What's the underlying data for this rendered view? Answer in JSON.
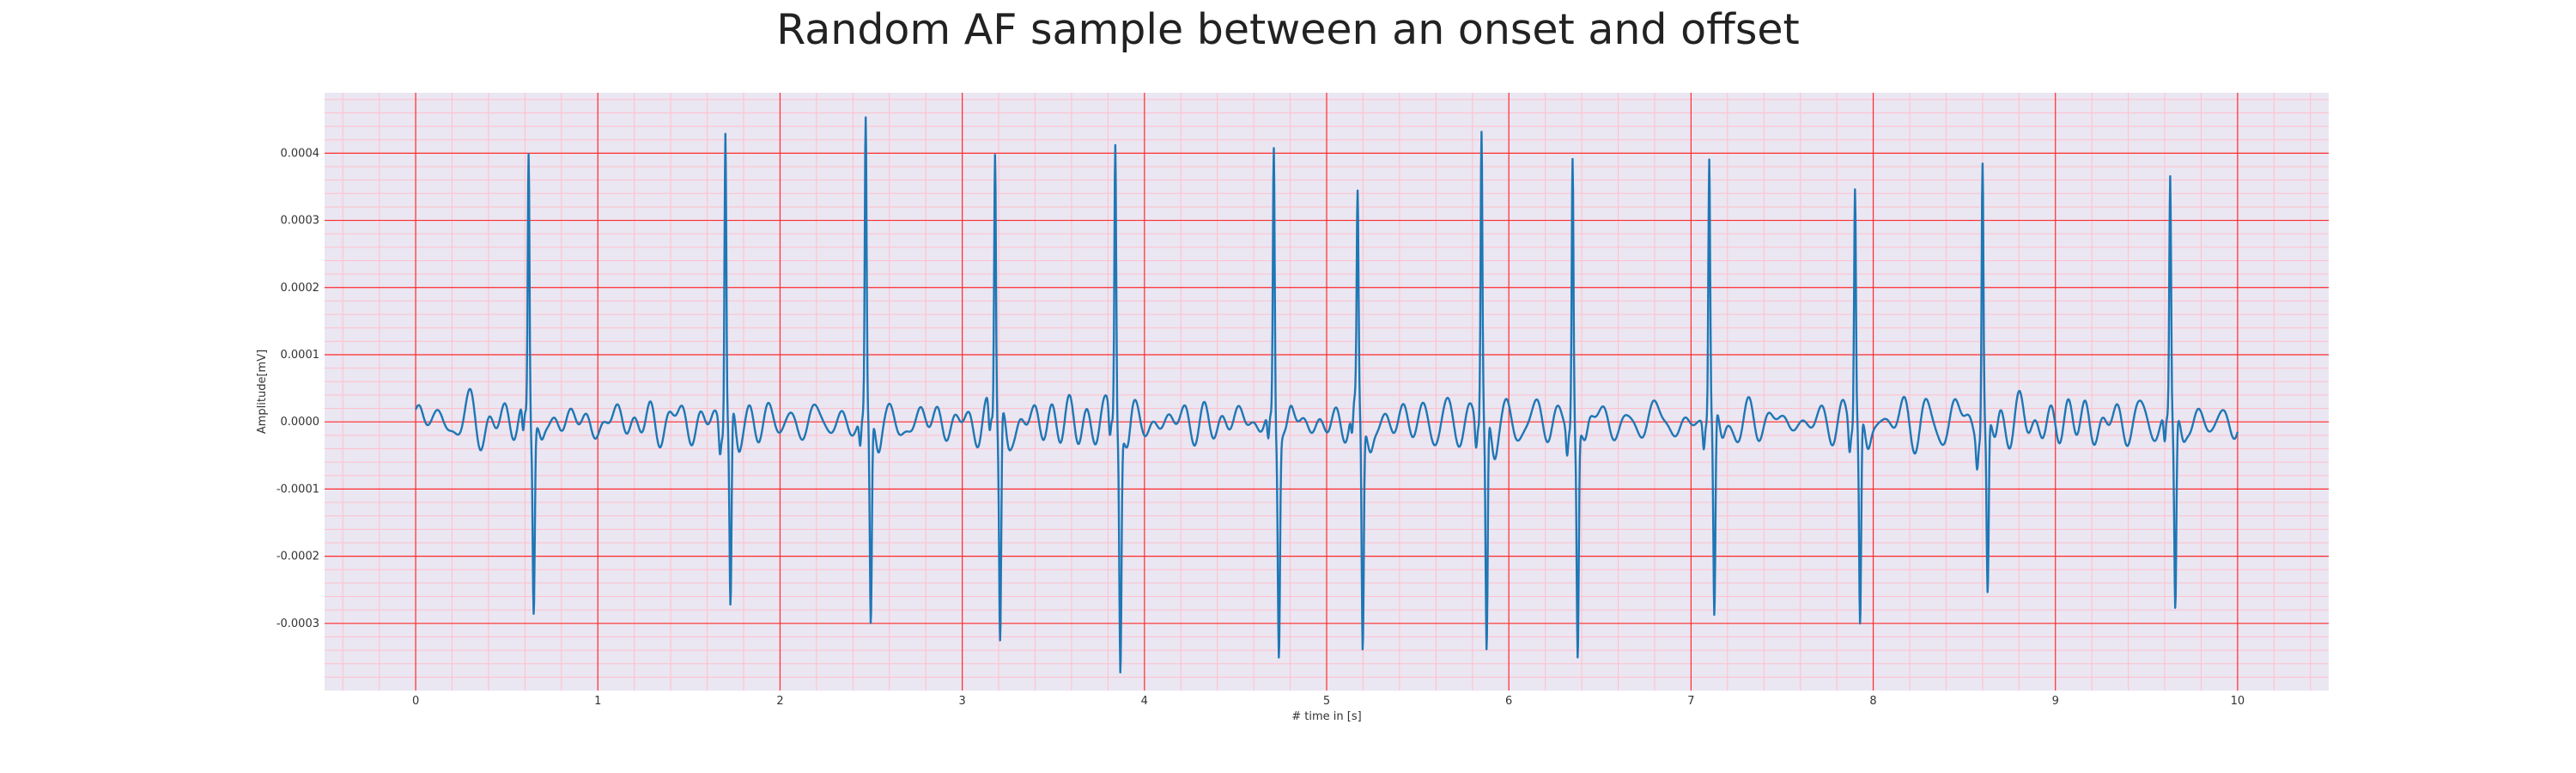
{
  "chart_data": {
    "type": "line",
    "title": "Random AF sample between an onset and offset",
    "xlabel": "# time in [s]",
    "ylabel": "Amplitude[mV]",
    "xlim": [
      -0.5,
      10.5
    ],
    "ylim": [
      -0.0004,
      0.00049
    ],
    "x_ticks": [
      0,
      1,
      2,
      3,
      4,
      5,
      6,
      7,
      8,
      9,
      10
    ],
    "x_tick_labels": [
      "0",
      "1",
      "2",
      "3",
      "4",
      "5",
      "6",
      "7",
      "8",
      "9",
      "10"
    ],
    "y_ticks": [
      -0.0003,
      -0.0002,
      -0.0001,
      0.0,
      0.0001,
      0.0002,
      0.0003,
      0.0004
    ],
    "y_tick_labels": [
      "-0.0003",
      "-0.0002",
      "-0.0001",
      "0.0000",
      "0.0001",
      "0.0002",
      "0.0003",
      "0.0004"
    ],
    "grid": true,
    "series": [
      {
        "color": "#1f77b4",
        "beats": [
          {
            "t": 0.62,
            "r": 0.000405,
            "s": -0.00027
          },
          {
            "t": 1.7,
            "r": 0.00045,
            "s": -0.00029
          },
          {
            "t": 2.47,
            "r": 0.00044,
            "s": -0.00031
          },
          {
            "t": 3.18,
            "r": 0.00041,
            "s": -0.000335
          },
          {
            "t": 3.84,
            "r": 0.000425,
            "s": -0.00035
          },
          {
            "t": 4.71,
            "r": 0.000415,
            "s": -0.000315
          },
          {
            "t": 5.17,
            "r": 0.00031,
            "s": -0.00034
          },
          {
            "t": 5.85,
            "r": 0.000435,
            "s": -0.00035
          },
          {
            "t": 6.35,
            "r": 0.000405,
            "s": -0.000335
          },
          {
            "t": 7.1,
            "r": 0.00039,
            "s": -0.000305
          },
          {
            "t": 7.9,
            "r": 0.000355,
            "s": -0.00031
          },
          {
            "t": 8.6,
            "r": 0.0004,
            "s": -0.00026
          },
          {
            "t": 9.63,
            "r": 0.000365,
            "s": -0.00028
          }
        ],
        "baseline_range": [
          -4e-05,
          5e-05
        ],
        "x_start": 0.0,
        "x_end": 10.0
      }
    ]
  },
  "colors": {
    "background": "#eae6f2",
    "major_grid": "#ff2b2b",
    "minor_grid": "#ffc0cb",
    "line": "#1f77b4"
  }
}
